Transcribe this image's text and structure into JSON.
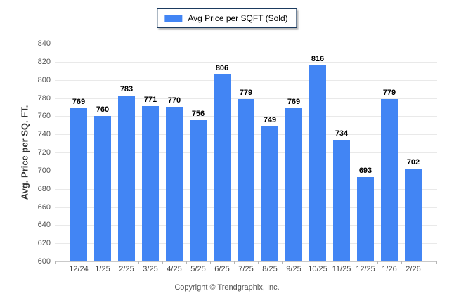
{
  "legend": {
    "label": "Avg Price per SQFT (Sold)"
  },
  "footer": {
    "copyright": "Copyright © Trendgraphix, Inc."
  },
  "colors": {
    "bar": "#4285f4",
    "grid": "#e9e9e9",
    "axis_text": "#555555",
    "legend_border": "#1b3a5e"
  },
  "chart_data": {
    "type": "bar",
    "title": "Avg Price per SQFT (Sold)",
    "categories": [
      "12/24",
      "1/25",
      "2/25",
      "3/25",
      "4/25",
      "5/25",
      "6/25",
      "7/25",
      "8/25",
      "9/25",
      "10/25",
      "11/25",
      "12/25",
      "1/26",
      "2/26"
    ],
    "values": [
      769,
      760,
      783,
      771,
      770,
      756,
      806,
      779,
      749,
      769,
      816,
      734,
      693,
      779,
      702
    ],
    "xlabel": "",
    "ylabel": "Avg. Price per SQ. FT.",
    "ylim": [
      600,
      840
    ],
    "ytick_step": 20,
    "grid": true,
    "legend_position": "top-center",
    "value_labels": true
  }
}
